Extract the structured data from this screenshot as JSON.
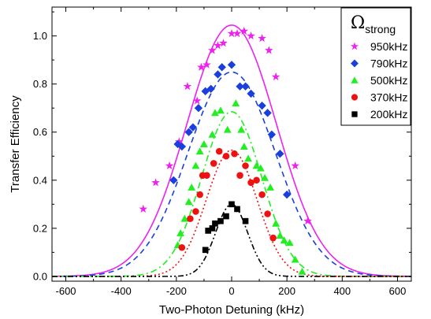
{
  "chart_data": {
    "type": "scatter",
    "xlabel": "Two-Photon Detuning (kHz)",
    "ylabel": "Transfer Efficiency",
    "xlim": [
      -650,
      650
    ],
    "ylim": [
      -0.02,
      1.12
    ],
    "xticks": [
      -600,
      -400,
      -200,
      0,
      200,
      400,
      600
    ],
    "yticks": [
      0.0,
      0.2,
      0.4,
      0.6,
      0.8,
      1.0
    ],
    "xtick_labels": [
      "-600",
      "-400",
      "-200",
      "0",
      "200",
      "400",
      "600"
    ],
    "ytick_labels": [
      "0.0",
      "0.2",
      "0.4",
      "0.6",
      "0.8",
      "1.0"
    ],
    "grid": false,
    "legend": {
      "title_symbol": "Ω",
      "title_subscript": "strong",
      "placement": "top-right"
    },
    "series": [
      {
        "name": "950kHz",
        "color": "#ee22ee",
        "marker": "star",
        "fit_style": "solid",
        "points": [
          [
            -320,
            0.28
          ],
          [
            -275,
            0.39
          ],
          [
            -225,
            0.46
          ],
          [
            -190,
            0.56
          ],
          [
            -160,
            0.79
          ],
          [
            -125,
            0.73
          ],
          [
            -110,
            0.87
          ],
          [
            -90,
            0.88
          ],
          [
            -70,
            0.94
          ],
          [
            -50,
            0.96
          ],
          [
            -30,
            0.97
          ],
          [
            0,
            1.01
          ],
          [
            20,
            1.01
          ],
          [
            45,
            1.02
          ],
          [
            70,
            1.0
          ],
          [
            110,
            0.99
          ],
          [
            135,
            0.94
          ],
          [
            160,
            0.83
          ],
          [
            230,
            0.46
          ],
          [
            275,
            0.23
          ]
        ],
        "fit": {
          "amp": 1.045,
          "sigma": 162
        }
      },
      {
        "name": "790kHz",
        "color": "#1a3fdc",
        "marker": "diamond",
        "fit_style": "dashed",
        "points": [
          [
            -210,
            0.4
          ],
          [
            -195,
            0.55
          ],
          [
            -180,
            0.54
          ],
          [
            -155,
            0.6
          ],
          [
            -140,
            0.62
          ],
          [
            -120,
            0.7
          ],
          [
            -95,
            0.77
          ],
          [
            -75,
            0.78
          ],
          [
            -50,
            0.84
          ],
          [
            -35,
            0.87
          ],
          [
            0,
            0.88
          ],
          [
            30,
            0.79
          ],
          [
            50,
            0.79
          ],
          [
            70,
            0.76
          ],
          [
            110,
            0.71
          ],
          [
            130,
            0.68
          ],
          [
            145,
            0.59
          ],
          [
            175,
            0.51
          ],
          [
            200,
            0.34
          ]
        ],
        "fit": {
          "amp": 0.85,
          "sigma": 158
        }
      },
      {
        "name": "500kHz",
        "color": "#22ee22",
        "marker": "triangle",
        "fit_style": "dashdot",
        "points": [
          [
            -195,
            0.13
          ],
          [
            -185,
            0.18
          ],
          [
            -170,
            0.24
          ],
          [
            -155,
            0.31
          ],
          [
            -145,
            0.37
          ],
          [
            -130,
            0.46
          ],
          [
            -115,
            0.52
          ],
          [
            -100,
            0.55
          ],
          [
            -70,
            0.59
          ],
          [
            -60,
            0.68
          ],
          [
            -40,
            0.69
          ],
          [
            -15,
            0.61
          ],
          [
            15,
            0.72
          ],
          [
            35,
            0.61
          ],
          [
            45,
            0.54
          ],
          [
            60,
            0.49
          ],
          [
            90,
            0.46
          ],
          [
            105,
            0.45
          ],
          [
            120,
            0.41
          ],
          [
            140,
            0.37
          ],
          [
            160,
            0.22
          ],
          [
            175,
            0.17
          ],
          [
            190,
            0.15
          ],
          [
            210,
            0.14
          ],
          [
            230,
            0.07
          ],
          [
            255,
            0.02
          ]
        ],
        "fit": {
          "amp": 0.685,
          "sigma": 108
        }
      },
      {
        "name": "370kHz",
        "color": "#ee1111",
        "marker": "circle",
        "fit_style": "dotted",
        "points": [
          [
            -180,
            0.12
          ],
          [
            -150,
            0.24
          ],
          [
            -130,
            0.27
          ],
          [
            -115,
            0.34
          ],
          [
            -105,
            0.42
          ],
          [
            -90,
            0.42
          ],
          [
            -65,
            0.47
          ],
          [
            -45,
            0.52
          ],
          [
            -20,
            0.5
          ],
          [
            10,
            0.51
          ],
          [
            30,
            0.42
          ],
          [
            50,
            0.46
          ],
          [
            70,
            0.39
          ],
          [
            90,
            0.4
          ],
          [
            110,
            0.34
          ],
          [
            130,
            0.26
          ],
          [
            150,
            0.16
          ]
        ],
        "fit": {
          "amp": 0.525,
          "sigma": 92
        }
      },
      {
        "name": "200kHz",
        "color": "#000000",
        "marker": "square",
        "fit_style": "dashdotdot",
        "points": [
          [
            -95,
            0.11
          ],
          [
            -85,
            0.19
          ],
          [
            -70,
            0.2
          ],
          [
            -60,
            0.22
          ],
          [
            -40,
            0.23
          ],
          [
            -20,
            0.25
          ],
          [
            0,
            0.3
          ],
          [
            20,
            0.28
          ],
          [
            50,
            0.23
          ]
        ],
        "fit": {
          "amp": 0.3,
          "sigma": 58
        }
      }
    ]
  }
}
